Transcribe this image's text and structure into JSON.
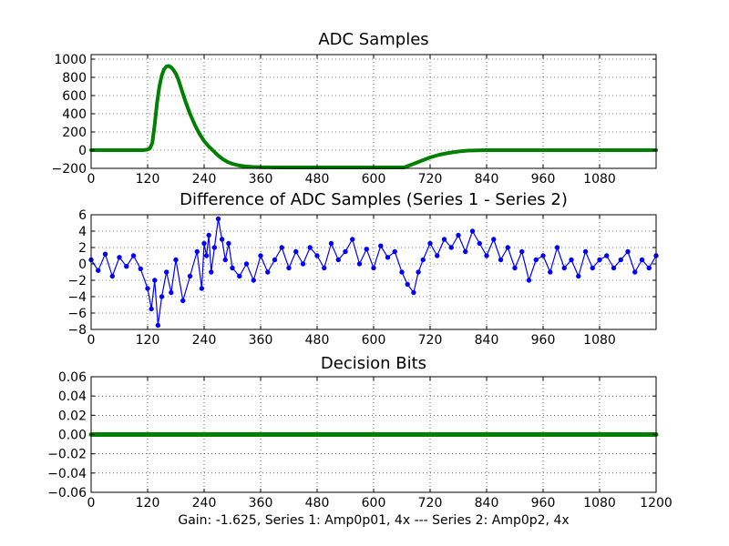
{
  "chart_data": [
    {
      "type": "line",
      "title": "ADC Samples",
      "xlim": [
        0,
        1200
      ],
      "ylim": [
        -200,
        1050
      ],
      "xticks": [
        0,
        120,
        240,
        360,
        480,
        600,
        720,
        840,
        960,
        1080
      ],
      "yticks": [
        -200,
        0,
        200,
        400,
        600,
        800,
        1000
      ],
      "grid": true,
      "series": [
        {
          "name": "ADC Samples",
          "color": "#008000",
          "x": [
            0,
            100,
            110,
            118,
            125,
            130,
            135,
            140,
            145,
            150,
            155,
            160,
            165,
            170,
            175,
            180,
            185,
            190,
            195,
            200,
            210,
            220,
            230,
            240,
            250,
            260,
            270,
            280,
            290,
            300,
            315,
            330,
            345,
            360,
            400,
            450,
            500,
            550,
            600,
            650,
            665,
            680,
            700,
            720,
            740,
            760,
            780,
            800,
            820,
            840,
            870,
            900,
            960,
            1020,
            1080,
            1200
          ],
          "y": [
            0,
            0,
            0,
            5,
            20,
            80,
            280,
            520,
            700,
            820,
            890,
            920,
            925,
            910,
            880,
            840,
            780,
            700,
            620,
            540,
            400,
            280,
            180,
            100,
            40,
            -10,
            -60,
            -100,
            -130,
            -150,
            -170,
            -180,
            -185,
            -188,
            -190,
            -190,
            -190,
            -190,
            -190,
            -190,
            -190,
            -160,
            -120,
            -80,
            -50,
            -30,
            -15,
            -5,
            -2,
            0,
            0,
            0,
            0,
            0,
            0,
            0
          ]
        }
      ]
    },
    {
      "type": "line",
      "title": "Difference of ADC Samples (Series 1 - Series 2)",
      "xlim": [
        0,
        1200
      ],
      "ylim": [
        -8,
        6
      ],
      "xticks": [
        0,
        120,
        240,
        360,
        480,
        600,
        720,
        840,
        960,
        1080
      ],
      "yticks": [
        -8,
        -6,
        -4,
        -2,
        0,
        2,
        4,
        6
      ],
      "grid": true,
      "series": [
        {
          "name": "Difference",
          "color": "#0000ff",
          "marker": "circle",
          "x": [
            0,
            15,
            30,
            45,
            60,
            75,
            90,
            105,
            120,
            128,
            135,
            142,
            150,
            160,
            170,
            180,
            195,
            210,
            225,
            235,
            240,
            245,
            250,
            255,
            262,
            270,
            278,
            285,
            292,
            300,
            315,
            330,
            345,
            360,
            375,
            390,
            405,
            420,
            435,
            450,
            465,
            480,
            495,
            510,
            525,
            540,
            555,
            570,
            585,
            600,
            615,
            630,
            645,
            660,
            672,
            685,
            695,
            705,
            720,
            735,
            750,
            765,
            780,
            795,
            810,
            825,
            840,
            855,
            870,
            885,
            900,
            915,
            930,
            945,
            960,
            975,
            990,
            1005,
            1020,
            1035,
            1050,
            1065,
            1080,
            1095,
            1110,
            1125,
            1140,
            1155,
            1170,
            1185,
            1200
          ],
          "y": [
            0.5,
            -0.8,
            1.2,
            -1.5,
            0.8,
            -0.3,
            1.0,
            -0.6,
            -3.0,
            -5.5,
            -2.0,
            -7.5,
            -4.0,
            -1.0,
            -3.5,
            0.5,
            -4.5,
            -1.5,
            1.5,
            -3.0,
            2.5,
            1.0,
            3.5,
            -1.0,
            2.0,
            5.5,
            3.0,
            0.5,
            2.5,
            -0.5,
            -1.5,
            0.0,
            -2.0,
            1.0,
            -1.0,
            0.5,
            2.0,
            -0.5,
            1.5,
            0.0,
            2.0,
            1.0,
            -0.5,
            2.5,
            0.5,
            1.5,
            3.0,
            0.0,
            1.8,
            -0.5,
            2.2,
            0.8,
            1.5,
            -1.0,
            -2.5,
            -3.5,
            -1.0,
            0.5,
            2.5,
            1.0,
            3.0,
            2.0,
            3.5,
            1.5,
            4.0,
            2.5,
            1.0,
            3.0,
            0.5,
            2.0,
            -0.5,
            1.5,
            -2.0,
            0.5,
            1.0,
            -1.0,
            2.0,
            -0.5,
            0.5,
            -1.5,
            1.5,
            -0.5,
            0.5,
            1.0,
            -0.5,
            0.5,
            1.5,
            -1.0,
            0.5,
            -0.5,
            1.0
          ]
        }
      ]
    },
    {
      "type": "line",
      "title": "Decision Bits",
      "xlim": [
        0,
        1200
      ],
      "ylim": [
        -0.06,
        0.06
      ],
      "xticks": [
        0,
        120,
        240,
        360,
        480,
        600,
        720,
        840,
        960,
        1080,
        1200
      ],
      "yticks": [
        -0.06,
        -0.04,
        -0.02,
        0.0,
        0.02,
        0.04,
        0.06
      ],
      "ytick_labels": [
        "−0.06",
        "−0.04",
        "−0.02",
        "0.00",
        "0.02",
        "0.04",
        "0.06"
      ],
      "grid": true,
      "series": [
        {
          "name": "Decision Bits",
          "color": "#008000",
          "x": [
            0,
            1200
          ],
          "y": [
            0,
            0
          ]
        }
      ]
    }
  ],
  "footer": {
    "caption": "Gain: -1.625, Series 1: Amp0p01, 4x --- Series 2: Amp0p2, 4x"
  }
}
